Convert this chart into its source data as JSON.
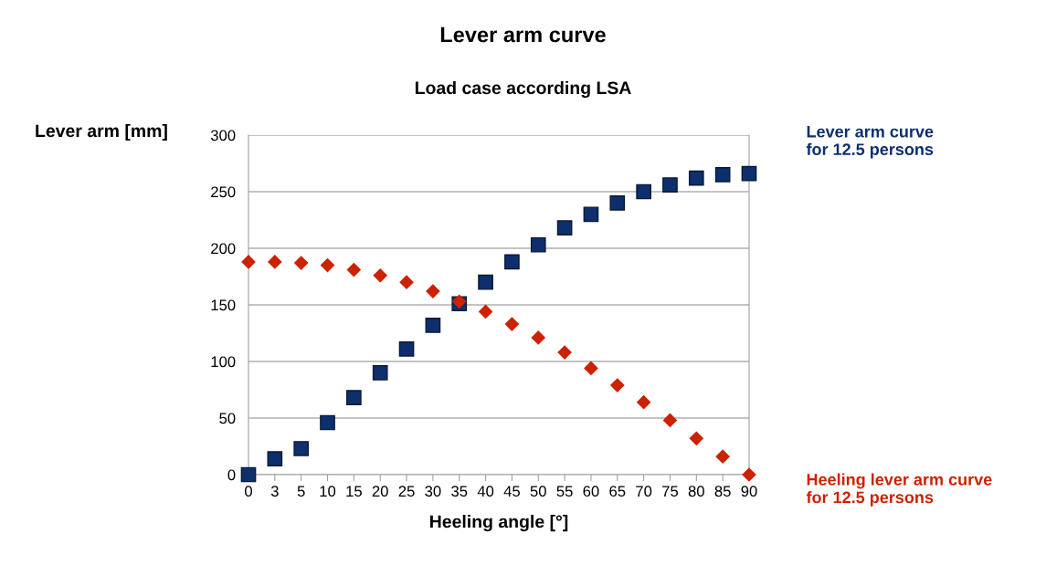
{
  "chart_data": {
    "type": "scatter",
    "title": "Lever arm curve",
    "subtitle": "Load case according LSA",
    "xlabel": "Heeling angle [°]",
    "ylabel": "Lever arm [mm]",
    "categories": [
      "0",
      "3",
      "5",
      "10",
      "15",
      "20",
      "25",
      "30",
      "35",
      "40",
      "45",
      "50",
      "55",
      "60",
      "65",
      "70",
      "75",
      "80",
      "85",
      "90"
    ],
    "series": [
      {
        "name": "Lever arm curve\nfor 12.5 persons",
        "color": "#0d2f6e",
        "marker": "square",
        "values": [
          0,
          14,
          23,
          46,
          68,
          90,
          111,
          132,
          151,
          170,
          188,
          203,
          218,
          230,
          240,
          250,
          256,
          262,
          265,
          266
        ]
      },
      {
        "name": "Heeling lever arm curve\nfor 12.5 persons",
        "color": "#cc2200",
        "marker": "diamond",
        "values": [
          188,
          188,
          187,
          185,
          181,
          176,
          170,
          162,
          153,
          144,
          133,
          121,
          108,
          94,
          79,
          64,
          48,
          32,
          16,
          0
        ]
      }
    ],
    "ylim": [
      0,
      300
    ],
    "yticks": [
      0,
      50,
      100,
      150,
      200,
      250,
      300
    ],
    "grid": "y",
    "legend": false
  }
}
